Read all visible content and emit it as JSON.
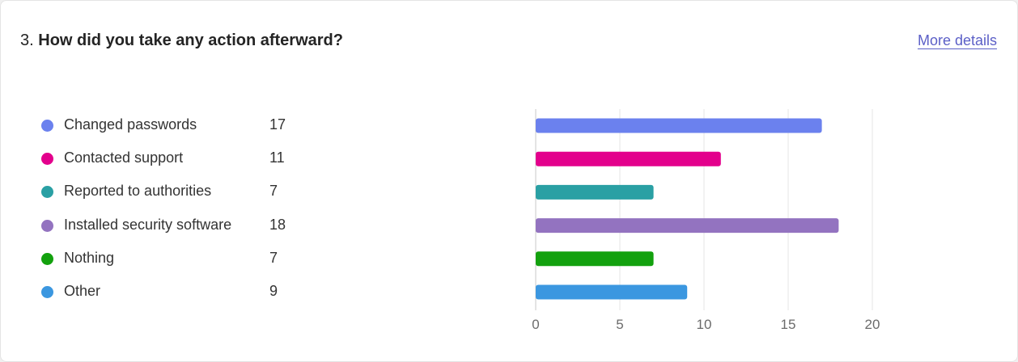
{
  "question": {
    "number": "3.",
    "text": "How did you take any action afterward?"
  },
  "more_details_label": "More details",
  "chart_data": {
    "type": "bar",
    "orientation": "horizontal",
    "categories": [
      "Changed passwords",
      "Contacted support",
      "Reported to authorities",
      "Installed security software",
      "Nothing",
      "Other"
    ],
    "values": [
      17,
      11,
      7,
      18,
      7,
      9
    ],
    "colors": [
      "#6b81ee",
      "#e3008c",
      "#2aa0a4",
      "#9373c0",
      "#13a10e",
      "#3b97e0"
    ],
    "xlim": [
      0,
      20
    ],
    "xticks": [
      "0",
      "5",
      "10",
      "15",
      "20"
    ],
    "grid": true,
    "legend": "left"
  }
}
